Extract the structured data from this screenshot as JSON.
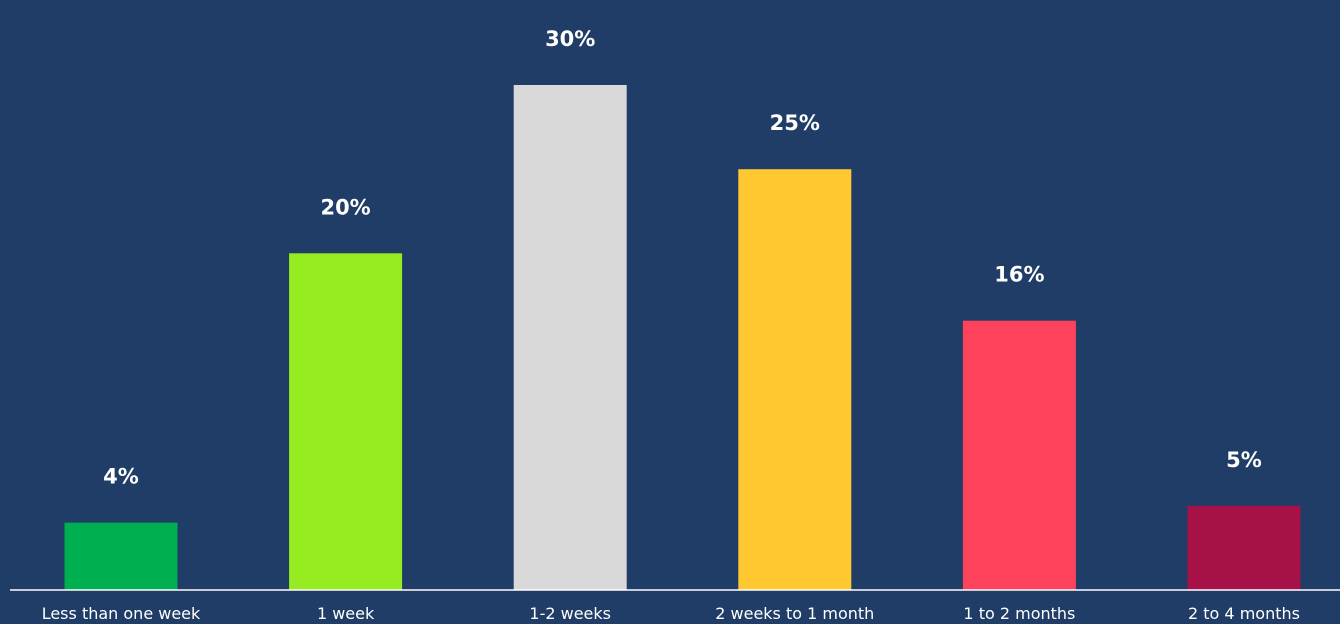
{
  "chart_data": {
    "type": "bar",
    "title": "",
    "xlabel": "",
    "ylabel": "",
    "categories": [
      "Less than one week",
      "1 week",
      "1-2 weeks",
      "2 weeks to 1 month",
      "1 to 2 months",
      "2 to 4 months"
    ],
    "values": [
      4,
      20,
      30,
      25,
      16,
      5
    ],
    "value_labels": [
      "4%",
      "20%",
      "30%",
      "25%",
      "16%",
      "5%"
    ],
    "ylim": [
      0,
      30
    ],
    "grid": false,
    "legend": "none",
    "colors": [
      "#00b050",
      "#96ec20",
      "#d9d9d9",
      "#ffc830",
      "#ff425b",
      "#a61148"
    ],
    "background": "#1f3d66",
    "baseline_color": "#ffffff"
  }
}
